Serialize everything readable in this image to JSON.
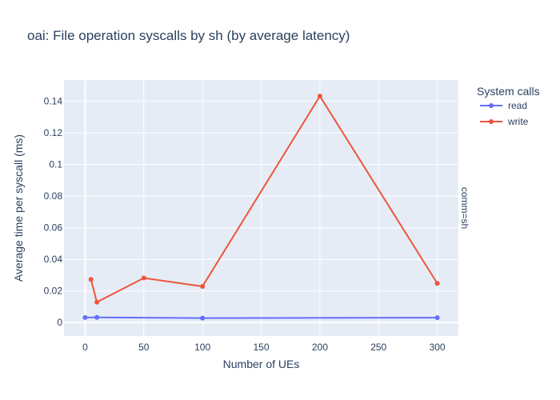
{
  "chart_data": {
    "type": "line",
    "title": "oai: File operation syscalls by sh (by average latency)",
    "xlabel": "Number of UEs",
    "ylabel": "Average time per syscall (ms)",
    "xlim": [
      -18,
      318
    ],
    "ylim": [
      -0.0085,
      0.1535
    ],
    "x_ticks": [
      0,
      50,
      100,
      150,
      200,
      250,
      300
    ],
    "y_ticks": [
      0,
      0.02,
      0.04,
      0.06,
      0.08,
      0.1,
      0.12,
      0.14
    ],
    "grid": true,
    "legend_title": "System calls",
    "legend_position": "top-right",
    "facet_label": "comm=sh",
    "series": [
      {
        "name": "read",
        "color": "#636efa",
        "x": [
          0,
          10,
          100,
          300
        ],
        "y": [
          0.0032,
          0.0033,
          0.0028,
          0.0031
        ]
      },
      {
        "name": "write",
        "color": "#ef553b",
        "x": [
          5,
          10,
          50,
          100,
          200,
          300
        ],
        "y": [
          0.0273,
          0.0129,
          0.0282,
          0.0229,
          0.1433,
          0.0248
        ]
      }
    ]
  }
}
